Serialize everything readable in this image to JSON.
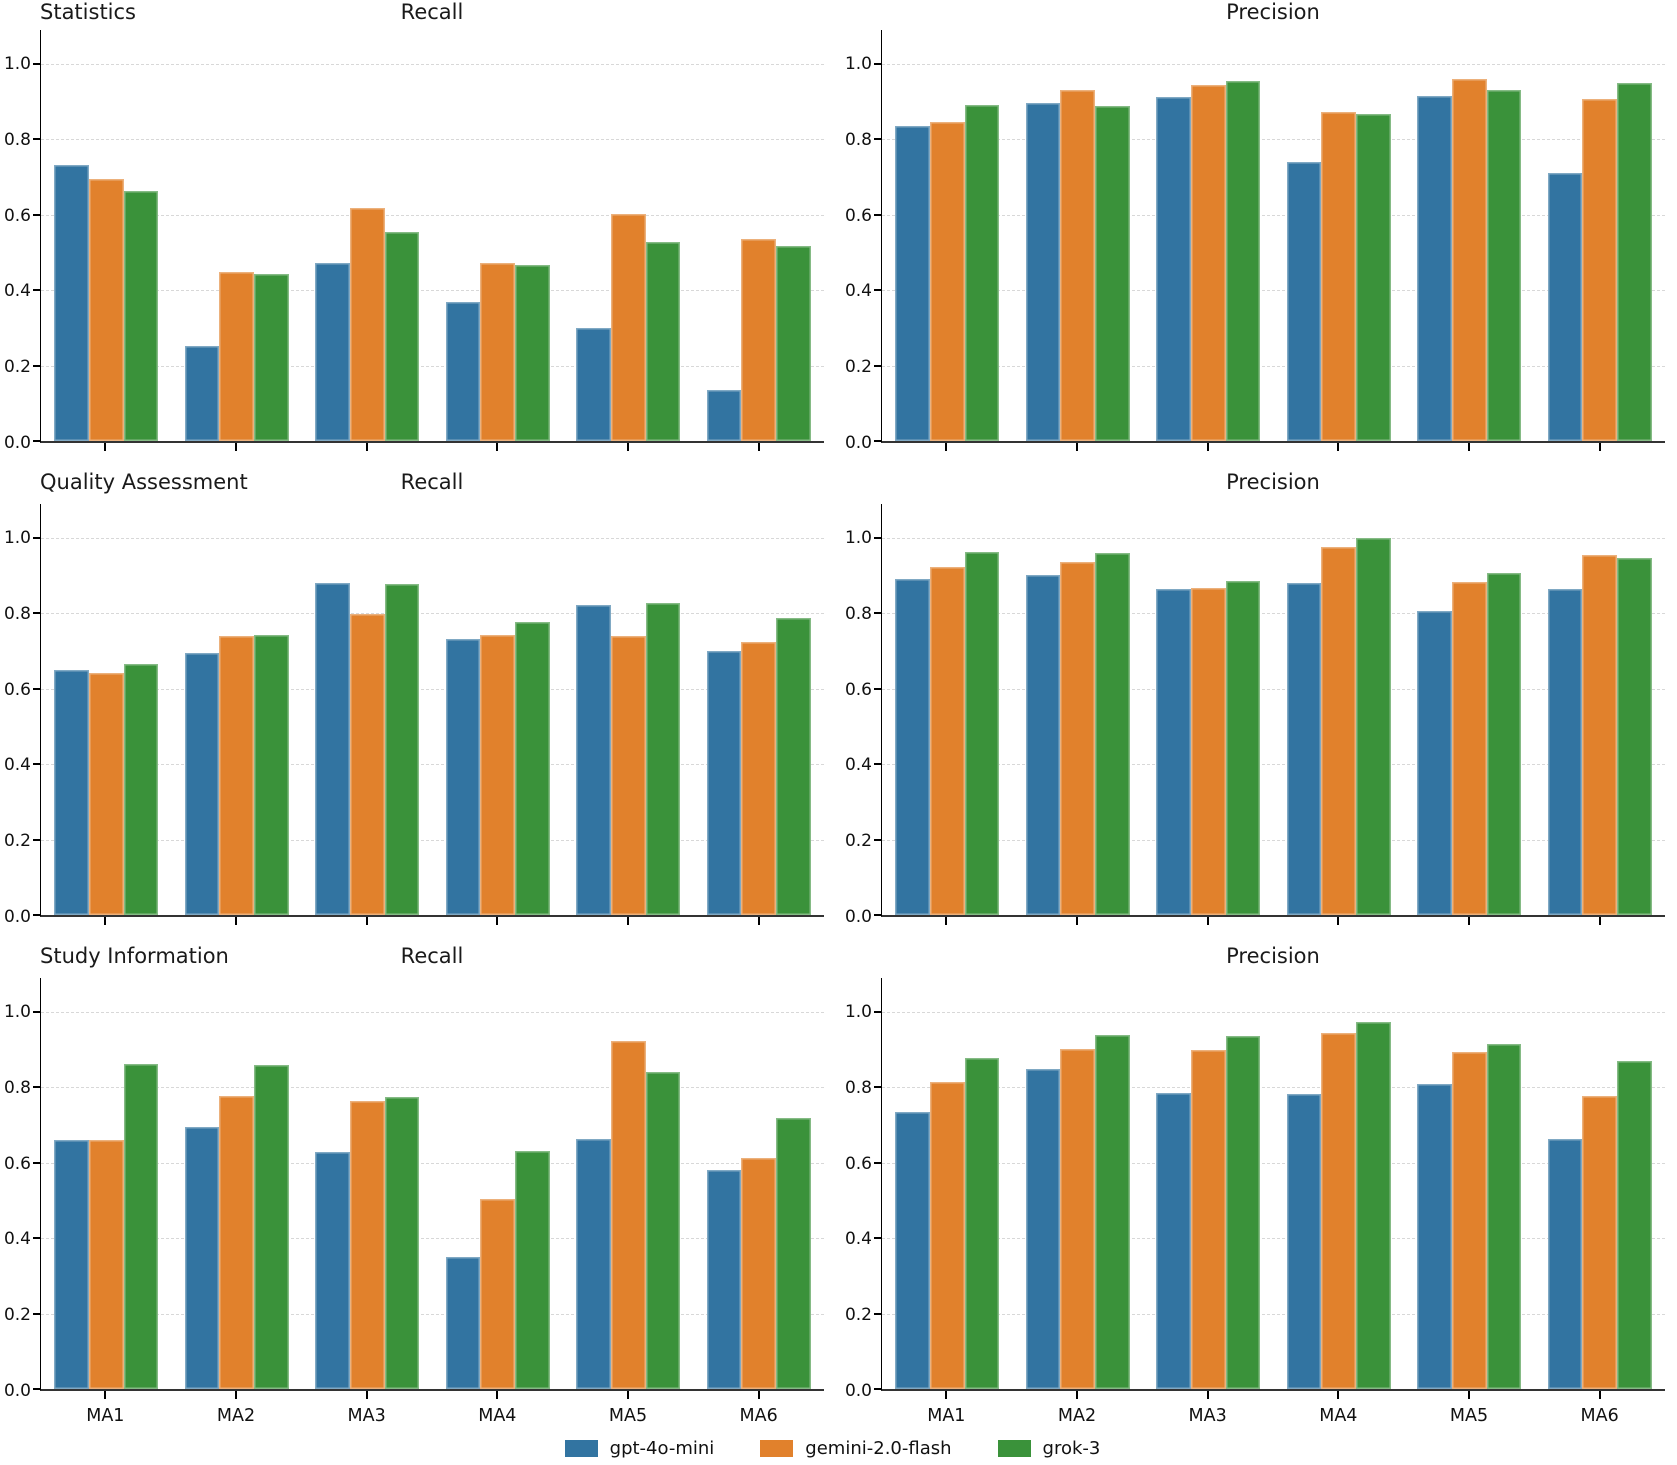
{
  "figure": {
    "legend": [
      {
        "label": "gpt-4o-mini",
        "color": "#3274A1"
      },
      {
        "label": "gemini-2.0-flash",
        "color": "#E1812C"
      },
      {
        "label": "grok-3",
        "color": "#3A923A"
      }
    ],
    "row_labels": [
      "Statistics",
      "Quality Assessment",
      "Study Information"
    ],
    "column_titles": [
      "Recall",
      "Precision"
    ]
  },
  "chart_data": [
    {
      "type": "bar",
      "row_label": "Statistics",
      "title": "Recall",
      "categories": [
        "MA1",
        "MA2",
        "MA3",
        "MA4",
        "MA5",
        "MA6"
      ],
      "x_labels_visible": false,
      "ylim": [
        0,
        1.09
      ],
      "yticks": [
        0.0,
        0.2,
        0.4,
        0.6,
        0.8,
        1.0
      ],
      "grid": "dashed-horizontal",
      "series": [
        {
          "name": "gpt-4o-mini",
          "color": "#3274A1",
          "values": [
            0.731,
            0.252,
            0.471,
            0.369,
            0.3,
            0.134
          ]
        },
        {
          "name": "gemini-2.0-flash",
          "color": "#E1812C",
          "values": [
            0.696,
            0.448,
            0.619,
            0.472,
            0.601,
            0.535
          ]
        },
        {
          "name": "grok-3",
          "color": "#3A923A",
          "values": [
            0.664,
            0.443,
            0.554,
            0.468,
            0.528,
            0.516
          ]
        }
      ]
    },
    {
      "type": "bar",
      "row_label": "Statistics",
      "title": "Precision",
      "categories": [
        "MA1",
        "MA2",
        "MA3",
        "MA4",
        "MA5",
        "MA6"
      ],
      "x_labels_visible": false,
      "ylim": [
        0,
        1.09
      ],
      "yticks": [
        0.0,
        0.2,
        0.4,
        0.6,
        0.8,
        1.0
      ],
      "grid": "dashed-horizontal",
      "series": [
        {
          "name": "gpt-4o-mini",
          "color": "#3274A1",
          "values": [
            0.836,
            0.897,
            0.912,
            0.741,
            0.916,
            0.712
          ]
        },
        {
          "name": "gemini-2.0-flash",
          "color": "#E1812C",
          "values": [
            0.847,
            0.931,
            0.945,
            0.872,
            0.96,
            0.908
          ]
        },
        {
          "name": "grok-3",
          "color": "#3A923A",
          "values": [
            0.892,
            0.888,
            0.954,
            0.868,
            0.93,
            0.95
          ]
        }
      ]
    },
    {
      "type": "bar",
      "row_label": "Quality Assessment",
      "title": "Recall",
      "categories": [
        "MA1",
        "MA2",
        "MA3",
        "MA4",
        "MA5",
        "MA6"
      ],
      "x_labels_visible": false,
      "ylim": [
        0,
        1.09
      ],
      "yticks": [
        0.0,
        0.2,
        0.4,
        0.6,
        0.8,
        1.0
      ],
      "grid": "dashed-horizontal",
      "series": [
        {
          "name": "gpt-4o-mini",
          "color": "#3274A1",
          "values": [
            0.65,
            0.695,
            0.881,
            0.733,
            0.823,
            0.701
          ]
        },
        {
          "name": "gemini-2.0-flash",
          "color": "#E1812C",
          "values": [
            0.641,
            0.741,
            0.797,
            0.743,
            0.74,
            0.725
          ]
        },
        {
          "name": "grok-3",
          "color": "#3A923A",
          "values": [
            0.667,
            0.742,
            0.877,
            0.777,
            0.827,
            0.787
          ]
        }
      ]
    },
    {
      "type": "bar",
      "row_label": "Quality Assessment",
      "title": "Precision",
      "categories": [
        "MA1",
        "MA2",
        "MA3",
        "MA4",
        "MA5",
        "MA6"
      ],
      "x_labels_visible": false,
      "ylim": [
        0,
        1.09
      ],
      "yticks": [
        0.0,
        0.2,
        0.4,
        0.6,
        0.8,
        1.0
      ],
      "grid": "dashed-horizontal",
      "series": [
        {
          "name": "gpt-4o-mini",
          "color": "#3274A1",
          "values": [
            0.89,
            0.903,
            0.864,
            0.88,
            0.806,
            0.865
          ]
        },
        {
          "name": "gemini-2.0-flash",
          "color": "#E1812C",
          "values": [
            0.922,
            0.935,
            0.868,
            0.977,
            0.882,
            0.955
          ]
        },
        {
          "name": "grok-3",
          "color": "#3A923A",
          "values": [
            0.963,
            0.961,
            0.886,
            1.0,
            0.907,
            0.947
          ]
        }
      ]
    },
    {
      "type": "bar",
      "row_label": "Study Information",
      "title": "Recall",
      "categories": [
        "MA1",
        "MA2",
        "MA3",
        "MA4",
        "MA5",
        "MA6"
      ],
      "x_labels_visible": true,
      "ylim": [
        0,
        1.09
      ],
      "yticks": [
        0.0,
        0.2,
        0.4,
        0.6,
        0.8,
        1.0
      ],
      "grid": "dashed-horizontal",
      "series": [
        {
          "name": "gpt-4o-mini",
          "color": "#3274A1",
          "values": [
            0.66,
            0.695,
            0.628,
            0.35,
            0.663,
            0.58
          ]
        },
        {
          "name": "gemini-2.0-flash",
          "color": "#E1812C",
          "values": [
            0.661,
            0.777,
            0.763,
            0.503,
            0.923,
            0.612
          ]
        },
        {
          "name": "grok-3",
          "color": "#3A923A",
          "values": [
            0.862,
            0.859,
            0.775,
            0.63,
            0.842,
            0.718
          ]
        }
      ]
    },
    {
      "type": "bar",
      "row_label": "Study Information",
      "title": "Precision",
      "categories": [
        "MA1",
        "MA2",
        "MA3",
        "MA4",
        "MA5",
        "MA6"
      ],
      "x_labels_visible": true,
      "ylim": [
        0,
        1.09
      ],
      "yticks": [
        0.0,
        0.2,
        0.4,
        0.6,
        0.8,
        1.0
      ],
      "grid": "dashed-horizontal",
      "series": [
        {
          "name": "gpt-4o-mini",
          "color": "#3274A1",
          "values": [
            0.735,
            0.85,
            0.786,
            0.783,
            0.808,
            0.663
          ]
        },
        {
          "name": "gemini-2.0-flash",
          "color": "#E1812C",
          "values": [
            0.814,
            0.903,
            0.899,
            0.945,
            0.895,
            0.778
          ]
        },
        {
          "name": "grok-3",
          "color": "#3A923A",
          "values": [
            0.877,
            0.938,
            0.935,
            0.973,
            0.915,
            0.87
          ]
        }
      ]
    }
  ]
}
